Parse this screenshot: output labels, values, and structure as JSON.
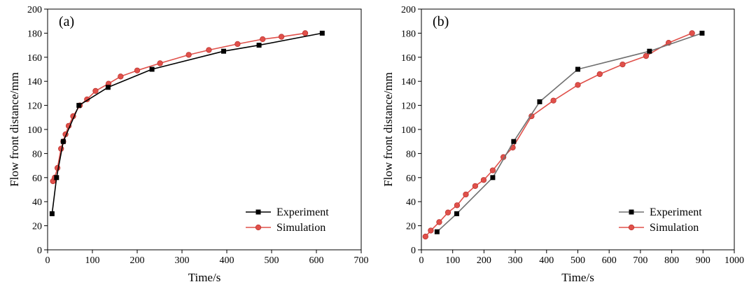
{
  "chart_data": [
    {
      "type": "line",
      "panel_label": "(a)",
      "xlabel": "Time/s",
      "ylabel": "Flow front distance/mm",
      "xlim": [
        0,
        700
      ],
      "ylim": [
        0,
        200
      ],
      "xticks": [
        0,
        100,
        200,
        300,
        400,
        500,
        600,
        700
      ],
      "yticks": [
        0,
        20,
        40,
        60,
        80,
        100,
        120,
        140,
        160,
        180,
        200
      ],
      "legend_position": "bottom-right",
      "series": [
        {
          "name": "Experiment",
          "color": "#000000",
          "marker": "square",
          "x": [
            10,
            20,
            35,
            70,
            135,
            233,
            393,
            472,
            613
          ],
          "y": [
            30,
            60,
            90,
            120,
            135,
            150,
            165,
            170,
            180
          ]
        },
        {
          "name": "Simulation",
          "color": "#e0504a",
          "marker": "circle",
          "x": [
            12,
            16,
            22,
            30,
            35,
            40,
            47,
            57,
            72,
            88,
            107,
            136,
            163,
            200,
            251,
            315,
            360,
            424,
            480,
            522,
            575
          ],
          "y": [
            57,
            60,
            68,
            84,
            90,
            96,
            103,
            111,
            120,
            125,
            132,
            138,
            144,
            149,
            155,
            162,
            166,
            171,
            175,
            177,
            180
          ]
        }
      ]
    },
    {
      "type": "line",
      "panel_label": "(b)",
      "xlabel": "Time/s",
      "ylabel": "Flow front distance/mm",
      "xlim": [
        0,
        1000
      ],
      "ylim": [
        0,
        200
      ],
      "xticks": [
        0,
        100,
        200,
        300,
        400,
        500,
        600,
        700,
        800,
        900,
        1000
      ],
      "yticks": [
        0,
        20,
        40,
        60,
        80,
        100,
        120,
        140,
        160,
        180,
        200
      ],
      "legend_position": "bottom-right",
      "series": [
        {
          "name": "Experiment",
          "color": "#707070",
          "marker": "square",
          "x": [
            50,
            113,
            228,
            295,
            378,
            500,
            729,
            897
          ],
          "y": [
            15,
            30,
            60,
            90,
            123,
            150,
            165,
            180
          ]
        },
        {
          "name": "Simulation",
          "color": "#e0504a",
          "marker": "circle",
          "x": [
            13,
            30,
            57,
            85,
            114,
            142,
            172,
            199,
            228,
            262,
            292,
            352,
            422,
            500,
            570,
            643,
            718,
            790,
            865
          ],
          "y": [
            11,
            16,
            23,
            31,
            37,
            46,
            53,
            58,
            66,
            77,
            85,
            111,
            124,
            137,
            146,
            154,
            161,
            172,
            180
          ]
        }
      ]
    }
  ]
}
